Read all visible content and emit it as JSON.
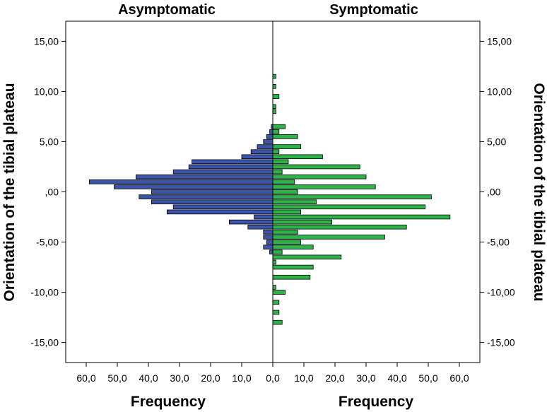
{
  "chart_data": {
    "type": "bar",
    "orientation": "horizontal",
    "layout": "population-pyramid",
    "panels": [
      {
        "name": "Asymptomatic",
        "side": "left",
        "color": "#3c55ab",
        "xlabel": "Frequency",
        "xlim": [
          0,
          65
        ],
        "xticks": [
          "60,0",
          "50,0",
          "40,0",
          "30,0",
          "20,0",
          "10,0",
          "0,0"
        ],
        "bars": [
          {
            "y": 6.5,
            "value": 0.5
          },
          {
            "y": 6,
            "value": 1
          },
          {
            "y": 5.5,
            "value": 2
          },
          {
            "y": 5,
            "value": 3
          },
          {
            "y": 4.5,
            "value": 5
          },
          {
            "y": 4,
            "value": 7
          },
          {
            "y": 3.5,
            "value": 10
          },
          {
            "y": 3,
            "value": 26
          },
          {
            "y": 2.5,
            "value": 27
          },
          {
            "y": 2,
            "value": 32
          },
          {
            "y": 1.5,
            "value": 44
          },
          {
            "y": 1,
            "value": 59
          },
          {
            "y": 0.5,
            "value": 51
          },
          {
            "y": 0,
            "value": 39
          },
          {
            "y": -0.5,
            "value": 43
          },
          {
            "y": -1,
            "value": 39
          },
          {
            "y": -1.5,
            "value": 32
          },
          {
            "y": -2,
            "value": 34
          },
          {
            "y": -2.5,
            "value": 6
          },
          {
            "y": -3,
            "value": 14
          },
          {
            "y": -3.5,
            "value": 8
          },
          {
            "y": -4,
            "value": 3
          },
          {
            "y": -4.5,
            "value": 3
          },
          {
            "y": -5,
            "value": 2
          },
          {
            "y": -5.5,
            "value": 3
          },
          {
            "y": -6,
            "value": 1
          }
        ]
      },
      {
        "name": "Symptomatic",
        "side": "right",
        "color": "#2db34a",
        "xlabel": "Frequency",
        "xlim": [
          0,
          65
        ],
        "xticks": [
          "0,0",
          "10,0",
          "20,0",
          "30,0",
          "40,0",
          "50,0",
          "60,0"
        ],
        "bars": [
          {
            "y": 11.5,
            "value": 1
          },
          {
            "y": 10.5,
            "value": 1
          },
          {
            "y": 9.5,
            "value": 2
          },
          {
            "y": 8.5,
            "value": 1
          },
          {
            "y": 8,
            "value": 1
          },
          {
            "y": 6.5,
            "value": 4
          },
          {
            "y": 6,
            "value": 2
          },
          {
            "y": 5.5,
            "value": 8
          },
          {
            "y": 4.5,
            "value": 9
          },
          {
            "y": 4,
            "value": 2
          },
          {
            "y": 3.5,
            "value": 16
          },
          {
            "y": 3,
            "value": 5
          },
          {
            "y": 2.5,
            "value": 28
          },
          {
            "y": 2,
            "value": 3
          },
          {
            "y": 1.5,
            "value": 30
          },
          {
            "y": 1,
            "value": 7
          },
          {
            "y": 0.5,
            "value": 33
          },
          {
            "y": 0,
            "value": 8
          },
          {
            "y": -0.5,
            "value": 51
          },
          {
            "y": -1,
            "value": 14
          },
          {
            "y": -1.5,
            "value": 49
          },
          {
            "y": -2,
            "value": 9
          },
          {
            "y": -2.5,
            "value": 57
          },
          {
            "y": -3,
            "value": 19
          },
          {
            "y": -3.5,
            "value": 43
          },
          {
            "y": -4,
            "value": 8
          },
          {
            "y": -4.5,
            "value": 36
          },
          {
            "y": -5,
            "value": 9
          },
          {
            "y": -5.5,
            "value": 13
          },
          {
            "y": -6,
            "value": 3
          },
          {
            "y": -6.5,
            "value": 22
          },
          {
            "y": -7,
            "value": 1
          },
          {
            "y": -7.5,
            "value": 13
          },
          {
            "y": -8.5,
            "value": 12
          },
          {
            "y": -9.5,
            "value": 1
          },
          {
            "y": -10,
            "value": 4
          },
          {
            "y": -11,
            "value": 2
          },
          {
            "y": -12,
            "value": 2
          },
          {
            "y": -13,
            "value": 3
          }
        ]
      }
    ],
    "ylabel_left": "Orientation of the tibial plateau",
    "ylabel_right": "Orientation of the tibial plateau",
    "ylim": [
      -17,
      17
    ],
    "yticks": [
      {
        "value": 15,
        "label": "15,00"
      },
      {
        "value": 10,
        "label": "10,00"
      },
      {
        "value": 5,
        "label": "5,00"
      },
      {
        "value": 0,
        "label": ",00"
      },
      {
        "value": -5,
        "label": "-5,00"
      },
      {
        "value": -10,
        "label": "-10,00"
      },
      {
        "value": -15,
        "label": "-15,00"
      }
    ],
    "bin_width": 0.5,
    "grid": false
  }
}
